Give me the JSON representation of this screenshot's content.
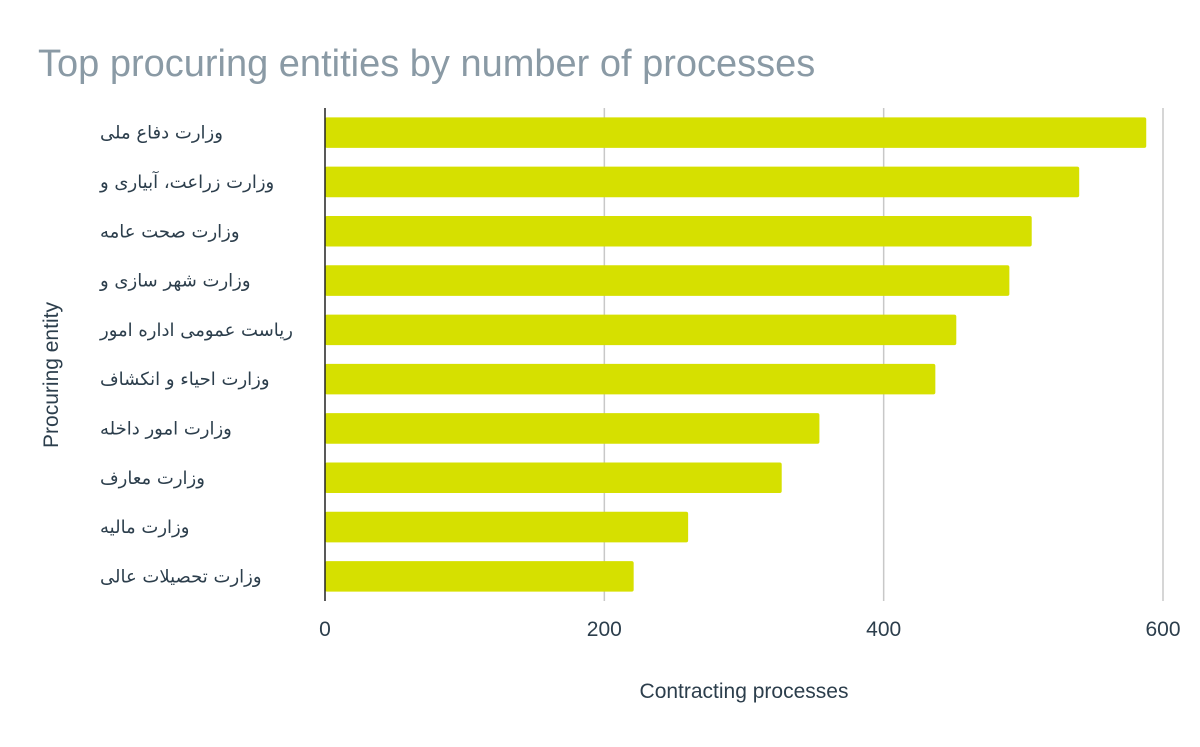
{
  "colors": {
    "bar": "#d6e000",
    "grid": "#c8c8c8",
    "axis": "#222222",
    "title": "#8a9aa5",
    "text": "#2c3e4c"
  },
  "chart_data": {
    "type": "bar",
    "orientation": "horizontal",
    "title": "Top procuring entities by number of processes",
    "xlabel": "Contracting processes",
    "ylabel": "Procuring entity",
    "xlim": [
      0,
      600
    ],
    "xticks": [
      0,
      200,
      400,
      600
    ],
    "grid": true,
    "legend": "none",
    "categories": [
      "وزارت دفاع ملی",
      "وزارت زراعت، آبیاری و",
      "وزارت صحت عامه",
      "وزارت شهر سازی و",
      "ریاست عمومی اداره امور",
      "وزارت احیاء و انکشاف",
      "وزارت امور داخله",
      "وزارت معارف",
      "وزارت مالیه",
      "وزارت تحصیلات عالی"
    ],
    "values": [
      588,
      540,
      506,
      490,
      452,
      437,
      354,
      327,
      260,
      221
    ]
  }
}
